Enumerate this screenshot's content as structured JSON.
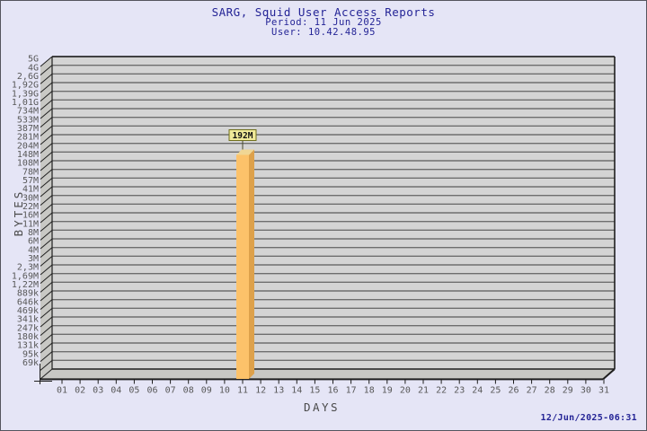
{
  "page": {
    "background": "#e5e5f6",
    "border_color": "#55555e"
  },
  "header": {
    "title": "SARG, Squid User Access Reports",
    "period": "Period: 11 Jun 2025",
    "user": "User: 10.42.48.95"
  },
  "footer": {
    "timestamp": "12/Jun/2025-06:31"
  },
  "chart_data": {
    "type": "bar",
    "style": "3d",
    "title": "SARG, Squid User Access Reports",
    "subtitle": [
      "Period: 11 Jun 2025",
      "User: 10.42.48.95"
    ],
    "xlabel": "DAYS",
    "ylabel": "BYTES",
    "y_scale": "log",
    "grid": true,
    "legend_position": "none",
    "y_tick_labels": [
      "5G",
      "4G",
      "2,6G",
      "1,92G",
      "1,39G",
      "1,01G",
      "734M",
      "533M",
      "387M",
      "281M",
      "204M",
      "148M",
      "108M",
      "78M",
      "57M",
      "41M",
      "30M",
      "22M",
      "16M",
      "11M",
      "8M",
      "6M",
      "4M",
      "3M",
      "2,3M",
      "1,69M",
      "1,22M",
      "889k",
      "646k",
      "469k",
      "341k",
      "247k",
      "180k",
      "131k",
      "95k",
      "69k"
    ],
    "y_tick_bytes": [
      5000000000,
      4000000000,
      2600000000,
      1920000000,
      1390000000,
      1010000000,
      734000000,
      533000000,
      387000000,
      281000000,
      204000000,
      148000000,
      108000000,
      78000000,
      57000000,
      41000000,
      30000000,
      22000000,
      16000000,
      11000000,
      8000000,
      6000000,
      4000000,
      3000000,
      2300000,
      1690000,
      1220000,
      889000,
      646000,
      469000,
      341000,
      247000,
      180000,
      131000,
      95000,
      69000
    ],
    "x_tick_labels": [
      "01",
      "02",
      "03",
      "04",
      "05",
      "06",
      "07",
      "08",
      "09",
      "10",
      "11",
      "12",
      "13",
      "14",
      "15",
      "16",
      "17",
      "18",
      "19",
      "20",
      "21",
      "22",
      "23",
      "24",
      "25",
      "26",
      "27",
      "28",
      "29",
      "30",
      "31"
    ],
    "bars": [
      {
        "day": 11,
        "value_label": "192M",
        "value_bytes": 192000000
      }
    ],
    "colors": {
      "title_text": "#242496",
      "plot_bg": "#d4d4d4",
      "grid_line": "#6e6e6e",
      "wall_fill": "#c8c8c4",
      "edge_line": "#1f1f1f",
      "axis_text": "#585858",
      "axis_title_text": "#4a4a4a",
      "bar_front": "#fcc26a",
      "bar_side": "#dda14b",
      "bar_top": "#f0d694",
      "annotation_bg": "#f0ea9a",
      "annotation_border": "#6f6f1e",
      "annotation_text": "#101010"
    }
  }
}
